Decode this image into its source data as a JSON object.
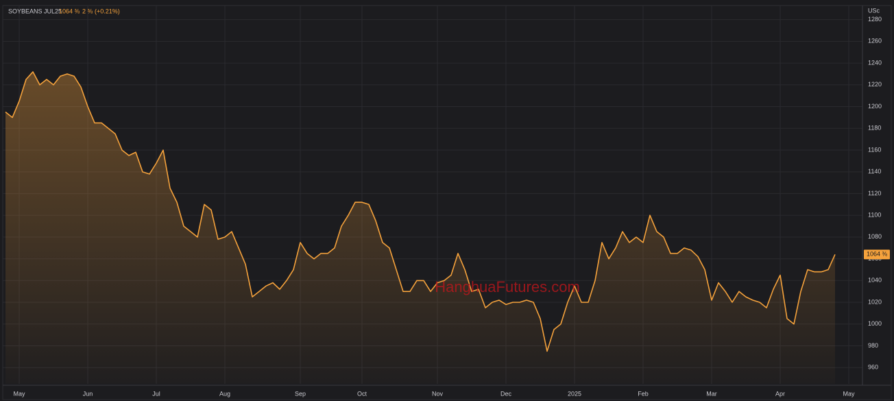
{
  "chart_data": {
    "type": "area",
    "title": "SOYBEANS JUL25",
    "last_price": "1064 ⅜",
    "change": "2 ⅜",
    "change_pct": "(+0.21%)",
    "y_unit": "USc",
    "watermark": "HanghuaFutures.com",
    "color": "#f5a23c",
    "grid": true,
    "ylim": [
      945,
      1293
    ],
    "yticks": [
      960,
      980,
      1000,
      1020,
      1040,
      1060,
      1080,
      1100,
      1120,
      1140,
      1160,
      1180,
      1200,
      1220,
      1240,
      1260,
      1280
    ],
    "categories": [
      null,
      null,
      "May",
      null,
      null,
      null,
      null,
      null,
      null,
      null,
      null,
      null,
      "Jun",
      null,
      null,
      null,
      null,
      null,
      null,
      null,
      null,
      null,
      "Jul",
      null,
      null,
      null,
      null,
      null,
      null,
      null,
      null,
      null,
      "Aug",
      null,
      null,
      null,
      null,
      null,
      null,
      null,
      null,
      null,
      null,
      "Sep",
      null,
      null,
      null,
      null,
      null,
      null,
      null,
      null,
      "Oct",
      null,
      null,
      null,
      null,
      null,
      null,
      null,
      null,
      null,
      null,
      "Nov",
      null,
      null,
      null,
      null,
      null,
      null,
      null,
      null,
      null,
      "Dec",
      null,
      null,
      null,
      null,
      null,
      null,
      null,
      null,
      null,
      "2025",
      null,
      null,
      null,
      null,
      null,
      null,
      null,
      null,
      null,
      "Feb",
      null,
      null,
      null,
      null,
      null,
      null,
      null,
      null,
      null,
      "Mar",
      null,
      null,
      null,
      null,
      null,
      null,
      null,
      null,
      null,
      "Apr",
      null,
      null,
      null,
      null,
      null,
      null,
      null,
      null,
      null,
      "May",
      null
    ],
    "values": [
      1195,
      1190,
      1205,
      1225,
      1232,
      1220,
      1225,
      1220,
      1228,
      1230,
      1228,
      1218,
      1200,
      1185,
      1185,
      1180,
      1175,
      1160,
      1155,
      1158,
      1140,
      1138,
      1148,
      1160,
      1125,
      1112,
      1090,
      1085,
      1080,
      1110,
      1105,
      1078,
      1080,
      1085,
      1070,
      1055,
      1025,
      1030,
      1035,
      1038,
      1032,
      1040,
      1050,
      1075,
      1065,
      1060,
      1065,
      1065,
      1070,
      1090,
      1100,
      1112,
      1112,
      1110,
      1095,
      1075,
      1070,
      1050,
      1030,
      1030,
      1040,
      1040,
      1030,
      1038,
      1040,
      1045,
      1065,
      1050,
      1030,
      1032,
      1015,
      1020,
      1022,
      1018,
      1020,
      1020,
      1022,
      1020,
      1005,
      975,
      995,
      1000,
      1020,
      1035,
      1020,
      1020,
      1040,
      1075,
      1060,
      1070,
      1085,
      1075,
      1080,
      1075,
      1100,
      1085,
      1080,
      1065,
      1065,
      1070,
      1068,
      1062,
      1050,
      1022,
      1038,
      1030,
      1020,
      1030,
      1025,
      1022,
      1020,
      1015,
      1032,
      1045,
      1005,
      1000,
      1030,
      1050,
      1048,
      1048,
      1050,
      1064,
      null,
      null,
      null
    ]
  }
}
